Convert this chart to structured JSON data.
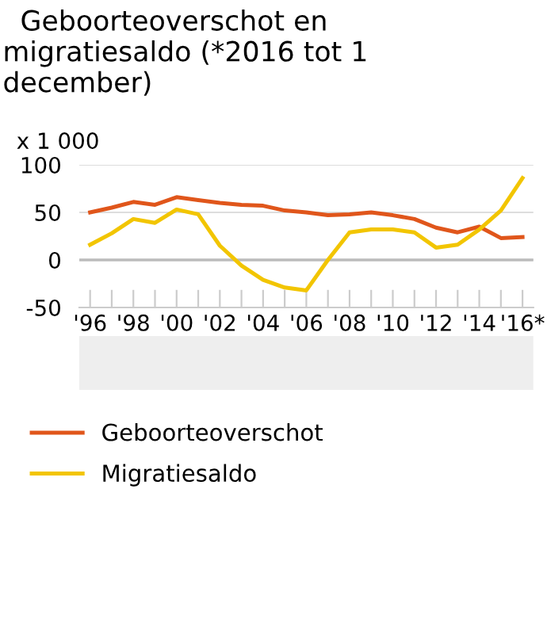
{
  "chart_data": {
    "type": "line",
    "title": "  Geboorteoverschot en\nmigratiesaldo (*2016 tot 1\ndecember)",
    "ylabel": "x 1 000",
    "categories": [
      "'96",
      null,
      "'98",
      null,
      "'00",
      null,
      "'02",
      null,
      "'04",
      null,
      "'06",
      null,
      "'08",
      null,
      "'10",
      null,
      "'12",
      null,
      "'14",
      null,
      "'16*"
    ],
    "series": [
      {
        "name": "Geboorteoverschot",
        "color": "#e0561b",
        "values": [
          50,
          55,
          61,
          58,
          66,
          63,
          60,
          58,
          57,
          52,
          50,
          47,
          48,
          50,
          47,
          43,
          34,
          29,
          35,
          23,
          24
        ]
      },
      {
        "name": "Migratiesaldo",
        "color": "#f2c500",
        "values": [
          16,
          28,
          43,
          39,
          53,
          48,
          15,
          -6,
          -21,
          -29,
          -32,
          0,
          29,
          32,
          32,
          29,
          13,
          16,
          32,
          52,
          86
        ]
      }
    ],
    "ylim": [
      -50,
      100
    ],
    "yticks": [
      -50,
      0,
      50,
      100
    ],
    "grid": "y",
    "legend": "bottom",
    "marker": "none",
    "line_style": "solid"
  }
}
